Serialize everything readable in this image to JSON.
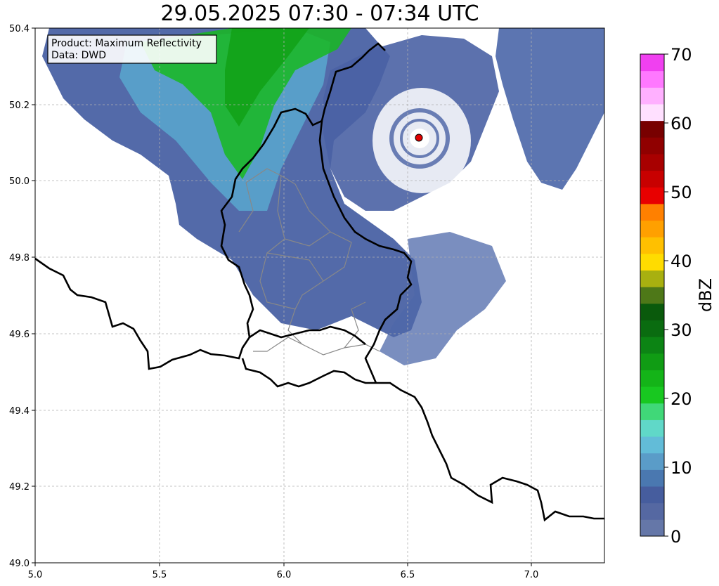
{
  "title": "29.05.2025 07:30 - 07:34 UTC",
  "info_box": {
    "product": "Product: Maximum Reflectivity",
    "data": "Data: DWD"
  },
  "x_ticks": [
    "5.0",
    "5.5",
    "6.0",
    "6.5",
    "7.0"
  ],
  "y_ticks": [
    "50.4",
    "50.2",
    "50.0",
    "49.8",
    "49.6",
    "49.4",
    "49.2",
    "49.0"
  ],
  "colorbar": {
    "label": "dBZ",
    "tick_labels": [
      "0",
      "10",
      "20",
      "30",
      "40",
      "50",
      "60",
      "70"
    ],
    "colors": [
      "#6577a8",
      "#5568a2",
      "#465d9e",
      "#4a78b0",
      "#5a9cc8",
      "#62bcd8",
      "#60d8c8",
      "#40d878",
      "#18c820",
      "#14b418",
      "#109c14",
      "#0c8414",
      "#0a6c10",
      "#0a5a0c",
      "#4e7818",
      "#a8b010",
      "#ffdc00",
      "#ffc000",
      "#ffa000",
      "#ff8000",
      "#e80000",
      "#c80000",
      "#a80000",
      "#900000",
      "#780000",
      "#ffe0ff",
      "#ffb0ff",
      "#ff78ff",
      "#f040f0"
    ]
  },
  "map": {
    "lon_range": [
      5.0,
      7.3
    ],
    "lat_range": [
      49.0,
      50.4
    ],
    "radar_site_color": "#e00000"
  }
}
